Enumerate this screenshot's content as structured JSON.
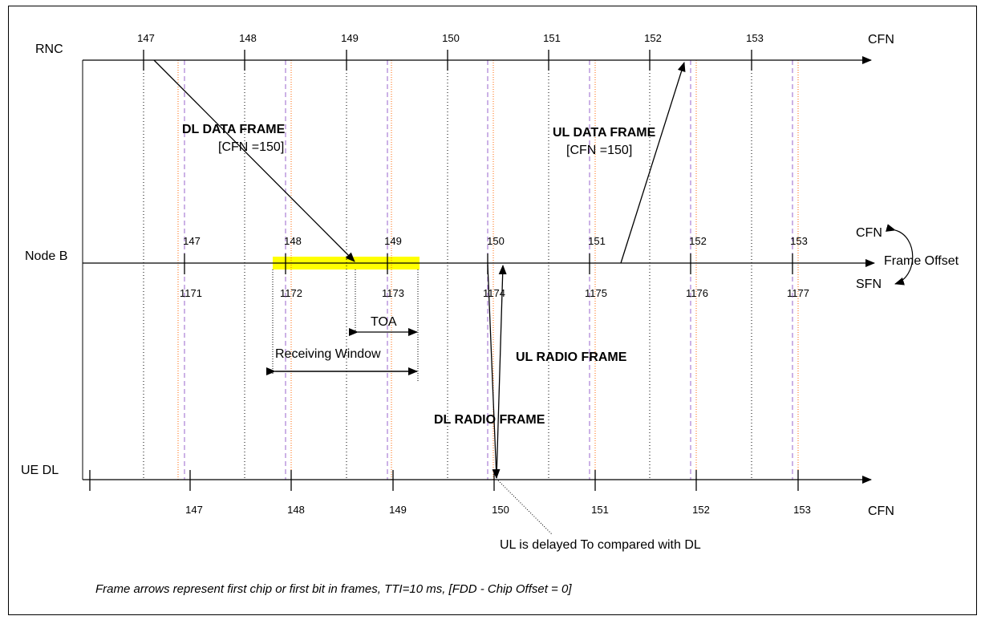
{
  "lanes": {
    "rnc": "RNC",
    "nodeb": "Node B",
    "uedl": "UE DL",
    "cfn_top": "CFN",
    "cfn_bottom": "CFN",
    "cfn_nodeb": "CFN",
    "sfn_nodeb": "SFN",
    "frame_offset": "Frame Offset"
  },
  "rnc_cfn": [
    "147",
    "148",
    "149",
    "150",
    "151",
    "152",
    "153"
  ],
  "nodeb_cfn": [
    "147",
    "148",
    "149",
    "150",
    "151",
    "152",
    "153"
  ],
  "nodeb_sfn": [
    "1171",
    "1172",
    "1173",
    "1174",
    "1175",
    "1176",
    "1177"
  ],
  "ue_cfn": [
    "147",
    "148",
    "149",
    "150",
    "151",
    "152",
    "153"
  ],
  "labels": {
    "dl_data_frame": "DL DATA FRAME",
    "dl_data_cfn": "[CFN =150]",
    "ul_data_frame": "UL DATA FRAME",
    "ul_data_cfn": "[CFN =150]",
    "toa": "TOA",
    "receiving_window": "Receiving Window",
    "ul_radio_frame": "UL RADIO FRAME",
    "dl_radio_frame": "DL RADIO FRAME",
    "ul_delayed": "UL is delayed To compared with DL"
  },
  "footnote": "Frame arrows represent first chip or first bit in frames, TTI=10 ms, [FDD - Chip Offset = 0]",
  "colors": {
    "highlight": "#ffff00",
    "purple_dash": "#9966cc",
    "orange_dot": "#ff6600",
    "line": "#000000"
  }
}
